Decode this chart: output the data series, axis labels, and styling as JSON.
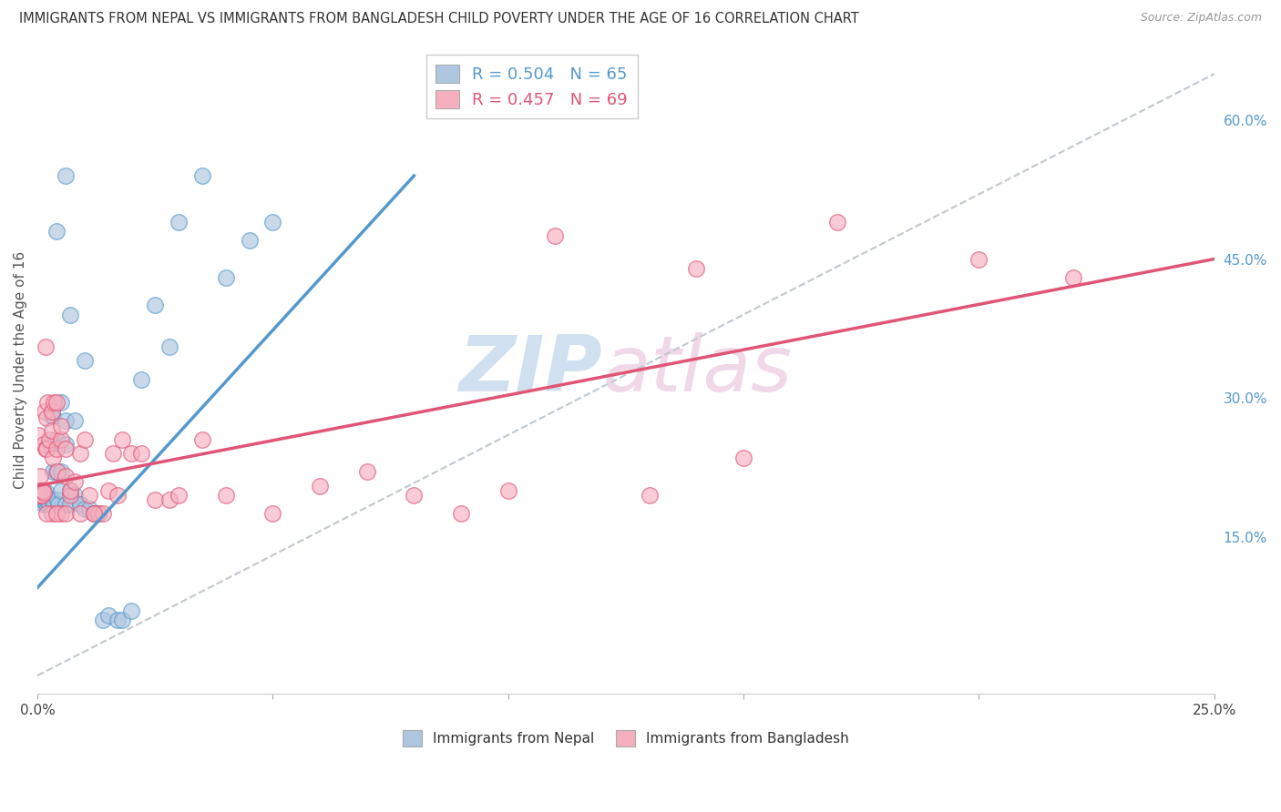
{
  "title": "IMMIGRANTS FROM NEPAL VS IMMIGRANTS FROM BANGLADESH CHILD POVERTY UNDER THE AGE OF 16 CORRELATION CHART",
  "source": "Source: ZipAtlas.com",
  "ylabel": "Child Poverty Under the Age of 16",
  "y_ticks_right": [
    0.15,
    0.3,
    0.45,
    0.6
  ],
  "y_tick_labels_right": [
    "15.0%",
    "30.0%",
    "45.0%",
    "60.0%"
  ],
  "xlim": [
    0.0,
    0.25
  ],
  "ylim": [
    -0.02,
    0.68
  ],
  "nepal_R": 0.504,
  "nepal_N": 65,
  "bangladesh_R": 0.457,
  "bangladesh_N": 69,
  "nepal_color": "#aec6e0",
  "bangladesh_color": "#f5b0bf",
  "nepal_line_color": "#5599cc",
  "bangladesh_line_color": "#e05575",
  "ref_line_color": "#c0c8d0",
  "watermark_color": "#d0e0f0",
  "watermark_pink": "#f0d8e8",
  "legend_nepal_label": "Immigrants from Nepal",
  "legend_bangladesh_label": "Immigrants from Bangladesh",
  "nepal_line_x0": 0.0,
  "nepal_line_y0": 0.095,
  "nepal_line_x1": 0.08,
  "nepal_line_y1": 0.54,
  "bangladesh_line_x0": 0.0,
  "bangladesh_line_y0": 0.205,
  "bangladesh_line_x1": 0.25,
  "bangladesh_line_y1": 0.45,
  "ref_line_x0": 0.0,
  "ref_line_y0": 0.0,
  "ref_line_x1": 0.25,
  "ref_line_y1": 0.65,
  "nepal_scatter_x": [
    0.0002,
    0.0003,
    0.0005,
    0.0006,
    0.0008,
    0.0009,
    0.001,
    0.001,
    0.0012,
    0.0013,
    0.0014,
    0.0015,
    0.0016,
    0.0017,
    0.0018,
    0.002,
    0.002,
    0.002,
    0.0022,
    0.0023,
    0.0025,
    0.0026,
    0.003,
    0.003,
    0.003,
    0.0032,
    0.0033,
    0.0035,
    0.004,
    0.004,
    0.0042,
    0.0044,
    0.005,
    0.005,
    0.005,
    0.006,
    0.006,
    0.006,
    0.007,
    0.007,
    0.008,
    0.008,
    0.009,
    0.009,
    0.01,
    0.011,
    0.012,
    0.013,
    0.014,
    0.015,
    0.017,
    0.018,
    0.02,
    0.022,
    0.025,
    0.028,
    0.03,
    0.035,
    0.04,
    0.045,
    0.05,
    0.01,
    0.007,
    0.006,
    0.004
  ],
  "nepal_scatter_y": [
    0.195,
    0.2,
    0.195,
    0.2,
    0.195,
    0.195,
    0.19,
    0.2,
    0.195,
    0.198,
    0.185,
    0.19,
    0.188,
    0.192,
    0.195,
    0.185,
    0.19,
    0.198,
    0.188,
    0.192,
    0.185,
    0.25,
    0.28,
    0.25,
    0.19,
    0.22,
    0.28,
    0.185,
    0.22,
    0.255,
    0.19,
    0.185,
    0.22,
    0.2,
    0.295,
    0.25,
    0.275,
    0.185,
    0.2,
    0.185,
    0.195,
    0.275,
    0.185,
    0.185,
    0.18,
    0.18,
    0.175,
    0.175,
    0.06,
    0.065,
    0.06,
    0.06,
    0.07,
    0.32,
    0.4,
    0.355,
    0.49,
    0.54,
    0.43,
    0.47,
    0.49,
    0.34,
    0.39,
    0.54,
    0.48
  ],
  "bangladesh_scatter_x": [
    0.0002,
    0.0004,
    0.0005,
    0.0006,
    0.0007,
    0.0008,
    0.001,
    0.001,
    0.0012,
    0.0013,
    0.0014,
    0.0016,
    0.0017,
    0.0018,
    0.002,
    0.002,
    0.0022,
    0.0025,
    0.003,
    0.003,
    0.0032,
    0.0034,
    0.004,
    0.004,
    0.0042,
    0.005,
    0.005,
    0.006,
    0.006,
    0.007,
    0.007,
    0.008,
    0.009,
    0.01,
    0.011,
    0.012,
    0.013,
    0.014,
    0.015,
    0.016,
    0.017,
    0.018,
    0.02,
    0.022,
    0.025,
    0.028,
    0.03,
    0.035,
    0.04,
    0.05,
    0.06,
    0.07,
    0.08,
    0.09,
    0.1,
    0.11,
    0.13,
    0.15,
    0.17,
    0.2,
    0.22,
    0.003,
    0.005,
    0.002,
    0.004,
    0.006,
    0.009,
    0.012,
    0.14
  ],
  "bangladesh_scatter_y": [
    0.26,
    0.2,
    0.195,
    0.215,
    0.195,
    0.195,
    0.195,
    0.2,
    0.2,
    0.198,
    0.25,
    0.285,
    0.245,
    0.355,
    0.278,
    0.245,
    0.295,
    0.255,
    0.265,
    0.285,
    0.235,
    0.295,
    0.295,
    0.245,
    0.22,
    0.255,
    0.27,
    0.245,
    0.215,
    0.195,
    0.2,
    0.21,
    0.24,
    0.255,
    0.195,
    0.175,
    0.175,
    0.175,
    0.2,
    0.24,
    0.195,
    0.255,
    0.24,
    0.24,
    0.19,
    0.19,
    0.195,
    0.255,
    0.195,
    0.175,
    0.205,
    0.22,
    0.195,
    0.175,
    0.2,
    0.475,
    0.195,
    0.235,
    0.49,
    0.45,
    0.43,
    0.175,
    0.175,
    0.175,
    0.175,
    0.175,
    0.175,
    0.175,
    0.44
  ]
}
